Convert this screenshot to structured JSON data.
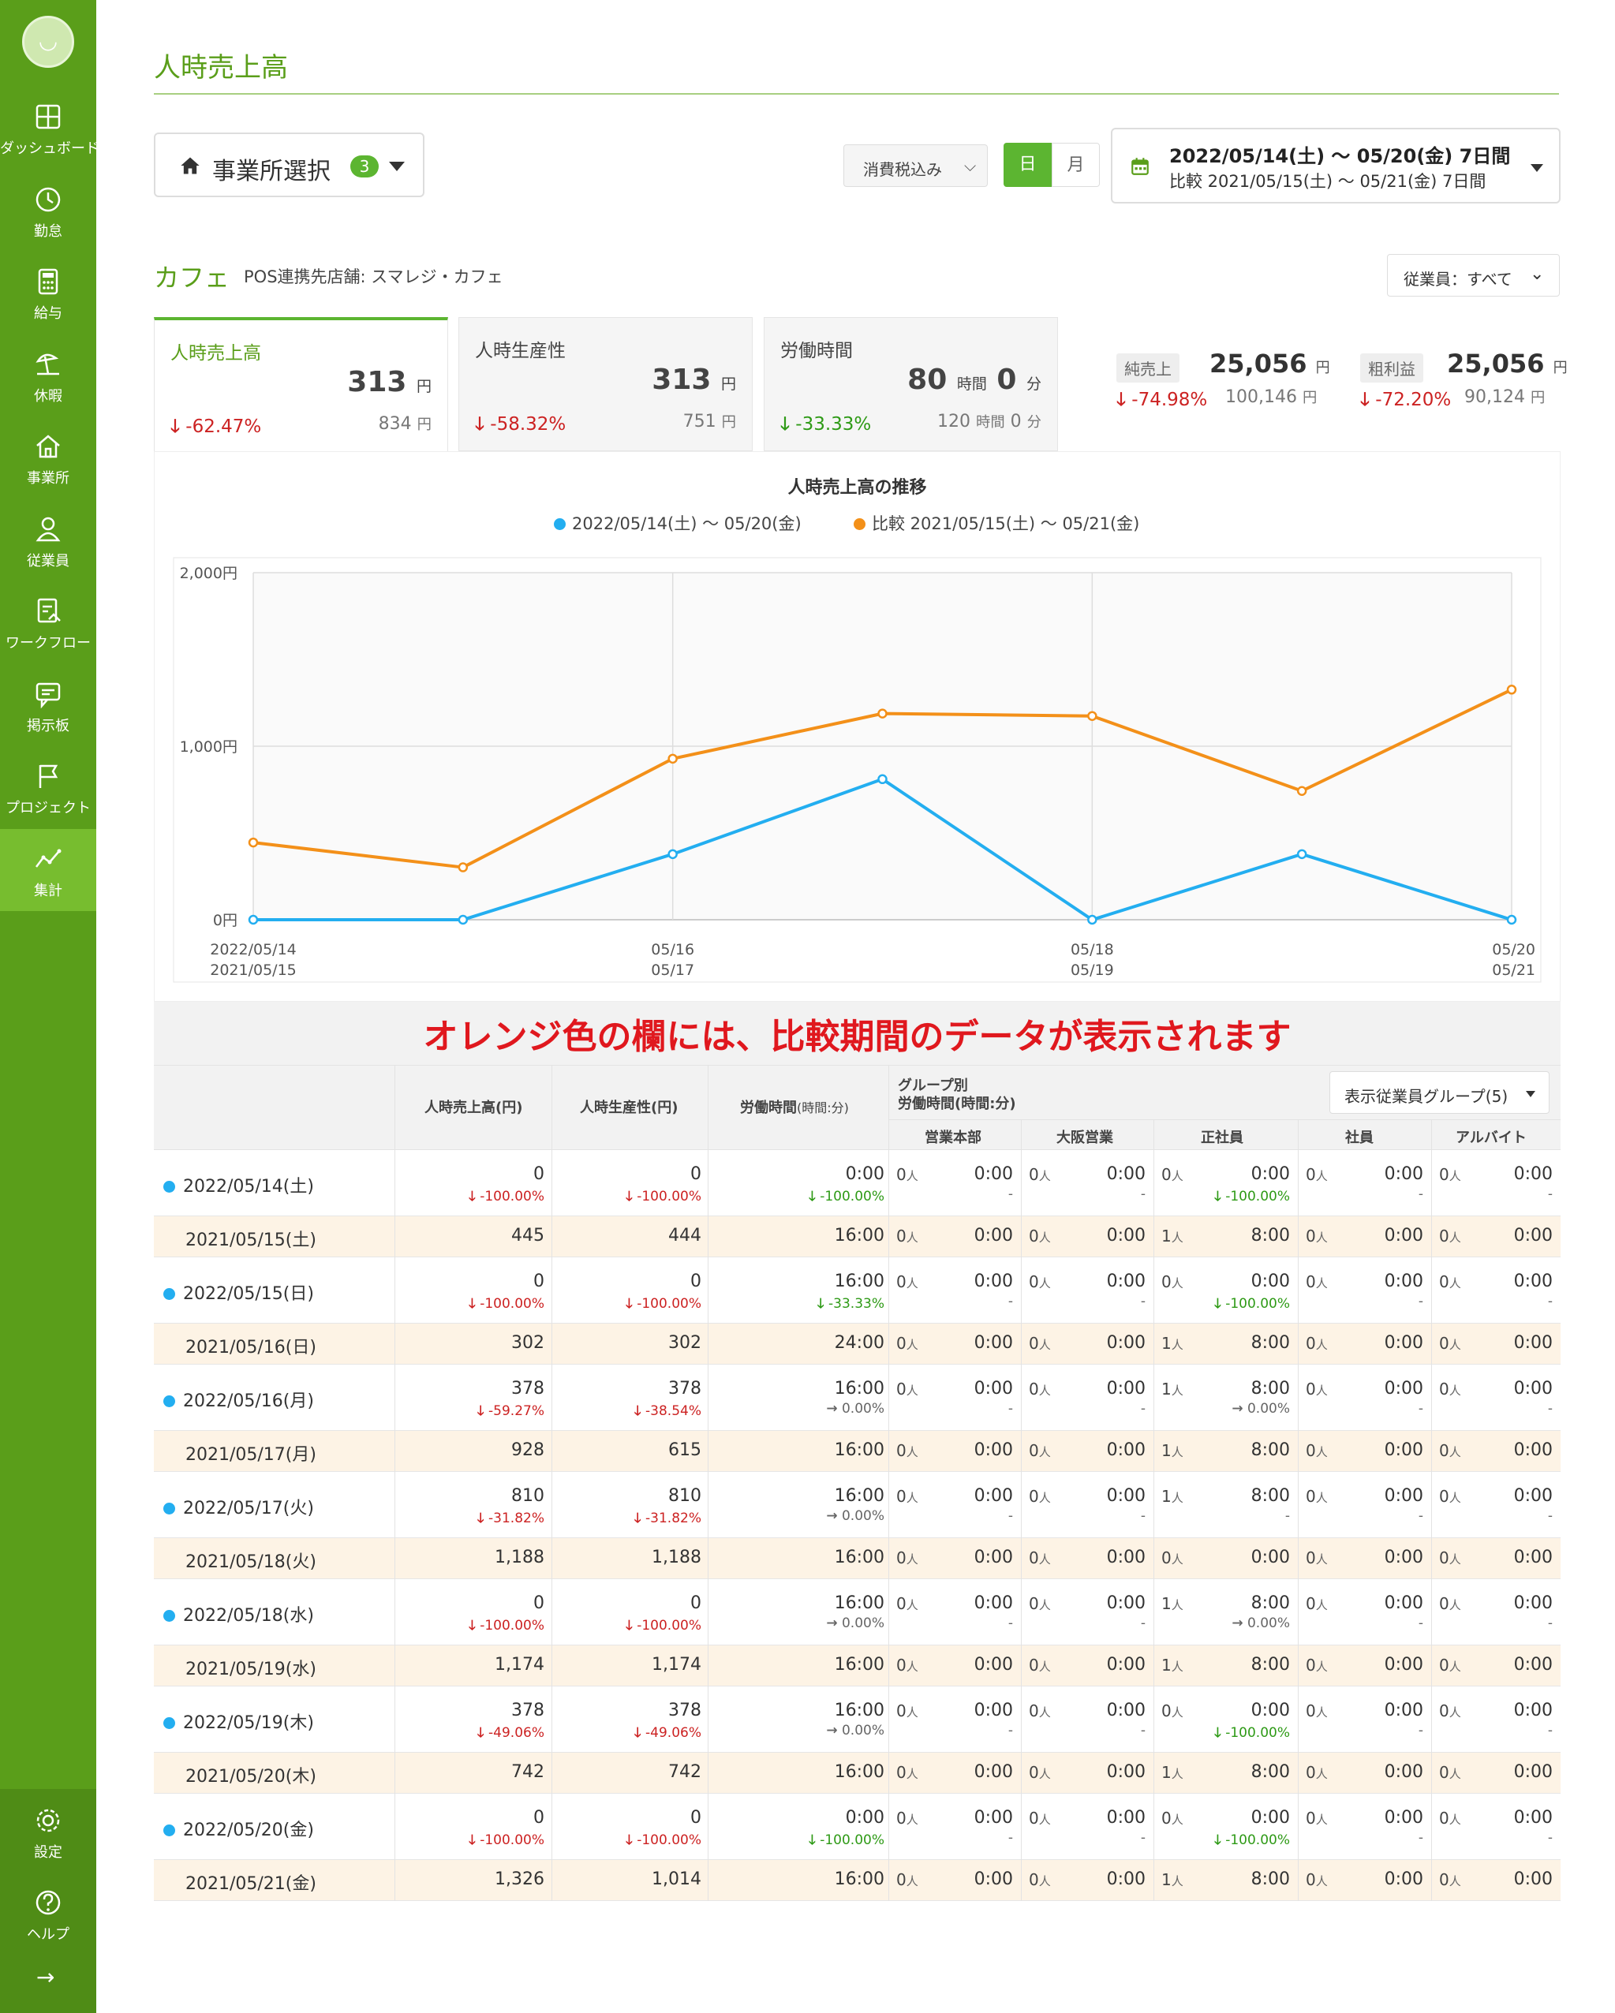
{
  "sidebar": {
    "items": [
      {
        "label": "ダッシュボード",
        "icon": "dashboard-icon"
      },
      {
        "label": "勤怠",
        "icon": "clock-icon"
      },
      {
        "label": "給与",
        "icon": "calculator-icon"
      },
      {
        "label": "休暇",
        "icon": "vacation-icon"
      },
      {
        "label": "事業所",
        "icon": "home-icon"
      },
      {
        "label": "従業員",
        "icon": "person-icon"
      },
      {
        "label": "ワークフロー",
        "icon": "workflow-icon"
      },
      {
        "label": "掲示板",
        "icon": "chat-icon"
      },
      {
        "label": "プロジェクト",
        "icon": "flag-icon"
      },
      {
        "label": "集計",
        "icon": "chart-line-icon"
      }
    ],
    "bottom": [
      {
        "label": "設定",
        "icon": "gear-icon"
      },
      {
        "label": "ヘルプ",
        "icon": "help-icon"
      }
    ],
    "collapse": "→"
  },
  "header": {
    "title": "人時売上高",
    "shop_select_label": "事業所選択",
    "shop_count": "3",
    "tax_select": "消費税込み",
    "seg_day": "日",
    "seg_month": "月",
    "date_range": "2022/05/14(土) 〜 05/20(金) 7日間",
    "compare_range": "比較 2021/05/15(土) 〜 05/21(金) 7日間"
  },
  "store": {
    "name": "カフェ",
    "pos": "POS連携先店舗: スマレジ・カフェ",
    "employee_filter": "従業員：すべて"
  },
  "metrics": [
    {
      "name": "人時売上高",
      "value": "313",
      "unit": "円",
      "pct": "-62.47%",
      "compare": "834",
      "compare_unit": "円"
    },
    {
      "name": "人時生産性",
      "value": "313",
      "unit": "円",
      "pct": "-58.32%",
      "compare": "751",
      "compare_unit": "円"
    },
    {
      "name": "労働時間",
      "value": "80",
      "unit": "時間",
      "value2": "0",
      "unit2": "分",
      "pct": "-33.33%",
      "compare": "120",
      "compare_unit": "時間",
      "compare2": "0",
      "compare_unit2": "分"
    }
  ],
  "kpis": [
    {
      "label": "純売上",
      "value": "25,056",
      "unit": "円",
      "pct": "-74.98%",
      "compare": "100,146",
      "compare_unit": "円"
    },
    {
      "label": "粗利益",
      "value": "25,056",
      "unit": "円",
      "pct": "-72.20%",
      "compare": "90,124",
      "compare_unit": "円"
    }
  ],
  "colors": {
    "brand": "#5a9e1a",
    "current_series": "#23aef0",
    "compare_series": "#f39019",
    "down_red": "#cc2222",
    "down_green": "#2e9a16",
    "notice_red": "#e0181e"
  },
  "chart_data": {
    "type": "line",
    "title": "人時売上高の推移",
    "y_ticks": [
      "0円",
      "1,000円",
      "2,000円"
    ],
    "ylim": [
      0,
      2000
    ],
    "x_labels": [
      {
        "i": 0,
        "top": "2022/05/14",
        "bottom": "2021/05/15"
      },
      {
        "i": 2,
        "top": "05/16",
        "bottom": "05/17"
      },
      {
        "i": 4,
        "top": "05/18",
        "bottom": "05/19"
      },
      {
        "i": 6,
        "top": "05/20",
        "bottom": "05/21"
      }
    ],
    "series": [
      {
        "name": "2022/05/14(土) 〜 05/20(金)",
        "color": "#23aef0",
        "values": [
          0,
          0,
          378,
          810,
          0,
          378,
          0
        ]
      },
      {
        "name": "比較 2021/05/15(土) 〜 05/21(金)",
        "color": "#f39019",
        "values": [
          445,
          302,
          928,
          1188,
          1174,
          742,
          1326
        ]
      }
    ],
    "grid": true,
    "legend": "top-center"
  },
  "notice": "オレンジ色の欄には、比較期間のデータが表示されます",
  "table": {
    "headers": {
      "sales": "人時売上高(円)",
      "productivity": "人時生産性(円)",
      "hours": "労働時間",
      "hours_unit": "(時間:分)",
      "group_title": "グループ別",
      "group_sub": "労働時間(時間:分)",
      "group_button": "表示従業員グループ(5)",
      "groups": [
        "営業本部",
        "大阪営業",
        "正社員",
        "社員",
        "アルバイト"
      ]
    },
    "person_unit": "人",
    "rows": [
      {
        "kind": "cur",
        "date": "2022/05/14(土)",
        "sales": "0",
        "sales_pct": "-100.00%",
        "sales_dir": "down-red",
        "prod": "0",
        "prod_pct": "-100.00%",
        "prod_dir": "down-red",
        "hours": "0:00",
        "hours_pct": "-100.00%",
        "hours_dir": "down-green",
        "groups": [
          {
            "n": "0",
            "t": "0:00",
            "p": "-"
          },
          {
            "n": "0",
            "t": "0:00",
            "p": "-"
          },
          {
            "n": "0",
            "t": "0:00",
            "p": "-100.00%",
            "d": "down-green"
          },
          {
            "n": "0",
            "t": "0:00",
            "p": "-"
          },
          {
            "n": "0",
            "t": "0:00",
            "p": "-"
          }
        ]
      },
      {
        "kind": "cmp",
        "date": "2021/05/15(土)",
        "sales": "445",
        "prod": "444",
        "hours": "16:00",
        "groups": [
          {
            "n": "0",
            "t": "0:00"
          },
          {
            "n": "0",
            "t": "0:00"
          },
          {
            "n": "1",
            "t": "8:00"
          },
          {
            "n": "0",
            "t": "0:00"
          },
          {
            "n": "0",
            "t": "0:00"
          }
        ]
      },
      {
        "kind": "cur",
        "date": "2022/05/15(日)",
        "sales": "0",
        "sales_pct": "-100.00%",
        "sales_dir": "down-red",
        "prod": "0",
        "prod_pct": "-100.00%",
        "prod_dir": "down-red",
        "hours": "16:00",
        "hours_pct": "-33.33%",
        "hours_dir": "down-green",
        "groups": [
          {
            "n": "0",
            "t": "0:00",
            "p": "-"
          },
          {
            "n": "0",
            "t": "0:00",
            "p": "-"
          },
          {
            "n": "0",
            "t": "0:00",
            "p": "-100.00%",
            "d": "down-green"
          },
          {
            "n": "0",
            "t": "0:00",
            "p": "-"
          },
          {
            "n": "0",
            "t": "0:00",
            "p": "-"
          }
        ]
      },
      {
        "kind": "cmp",
        "date": "2021/05/16(日)",
        "sales": "302",
        "prod": "302",
        "hours": "24:00",
        "groups": [
          {
            "n": "0",
            "t": "0:00"
          },
          {
            "n": "0",
            "t": "0:00"
          },
          {
            "n": "1",
            "t": "8:00"
          },
          {
            "n": "0",
            "t": "0:00"
          },
          {
            "n": "0",
            "t": "0:00"
          }
        ]
      },
      {
        "kind": "cur",
        "date": "2022/05/16(月)",
        "sales": "378",
        "sales_pct": "-59.27%",
        "sales_dir": "down-red",
        "prod": "378",
        "prod_pct": "-38.54%",
        "prod_dir": "down-red",
        "hours": "16:00",
        "hours_pct": "0.00%",
        "hours_dir": "flat",
        "groups": [
          {
            "n": "0",
            "t": "0:00",
            "p": "-"
          },
          {
            "n": "0",
            "t": "0:00",
            "p": "-"
          },
          {
            "n": "1",
            "t": "8:00",
            "p": "0.00%",
            "d": "flat"
          },
          {
            "n": "0",
            "t": "0:00",
            "p": "-"
          },
          {
            "n": "0",
            "t": "0:00",
            "p": "-"
          }
        ]
      },
      {
        "kind": "cmp",
        "date": "2021/05/17(月)",
        "sales": "928",
        "prod": "615",
        "hours": "16:00",
        "groups": [
          {
            "n": "0",
            "t": "0:00"
          },
          {
            "n": "0",
            "t": "0:00"
          },
          {
            "n": "1",
            "t": "8:00"
          },
          {
            "n": "0",
            "t": "0:00"
          },
          {
            "n": "0",
            "t": "0:00"
          }
        ]
      },
      {
        "kind": "cur",
        "date": "2022/05/17(火)",
        "sales": "810",
        "sales_pct": "-31.82%",
        "sales_dir": "down-red",
        "prod": "810",
        "prod_pct": "-31.82%",
        "prod_dir": "down-red",
        "hours": "16:00",
        "hours_pct": "0.00%",
        "hours_dir": "flat",
        "groups": [
          {
            "n": "0",
            "t": "0:00",
            "p": "-"
          },
          {
            "n": "0",
            "t": "0:00",
            "p": "-"
          },
          {
            "n": "1",
            "t": "8:00",
            "p": "-"
          },
          {
            "n": "0",
            "t": "0:00",
            "p": "-"
          },
          {
            "n": "0",
            "t": "0:00",
            "p": "-"
          }
        ]
      },
      {
        "kind": "cmp",
        "date": "2021/05/18(火)",
        "sales": "1,188",
        "prod": "1,188",
        "hours": "16:00",
        "groups": [
          {
            "n": "0",
            "t": "0:00"
          },
          {
            "n": "0",
            "t": "0:00"
          },
          {
            "n": "0",
            "t": "0:00"
          },
          {
            "n": "0",
            "t": "0:00"
          },
          {
            "n": "0",
            "t": "0:00"
          }
        ]
      },
      {
        "kind": "cur",
        "date": "2022/05/18(水)",
        "sales": "0",
        "sales_pct": "-100.00%",
        "sales_dir": "down-red",
        "prod": "0",
        "prod_pct": "-100.00%",
        "prod_dir": "down-red",
        "hours": "16:00",
        "hours_pct": "0.00%",
        "hours_dir": "flat",
        "groups": [
          {
            "n": "0",
            "t": "0:00",
            "p": "-"
          },
          {
            "n": "0",
            "t": "0:00",
            "p": "-"
          },
          {
            "n": "1",
            "t": "8:00",
            "p": "0.00%",
            "d": "flat"
          },
          {
            "n": "0",
            "t": "0:00",
            "p": "-"
          },
          {
            "n": "0",
            "t": "0:00",
            "p": "-"
          }
        ]
      },
      {
        "kind": "cmp",
        "date": "2021/05/19(水)",
        "sales": "1,174",
        "prod": "1,174",
        "hours": "16:00",
        "groups": [
          {
            "n": "0",
            "t": "0:00"
          },
          {
            "n": "0",
            "t": "0:00"
          },
          {
            "n": "1",
            "t": "8:00"
          },
          {
            "n": "0",
            "t": "0:00"
          },
          {
            "n": "0",
            "t": "0:00"
          }
        ]
      },
      {
        "kind": "cur",
        "date": "2022/05/19(木)",
        "sales": "378",
        "sales_pct": "-49.06%",
        "sales_dir": "down-red",
        "prod": "378",
        "prod_pct": "-49.06%",
        "prod_dir": "down-red",
        "hours": "16:00",
        "hours_pct": "0.00%",
        "hours_dir": "flat",
        "groups": [
          {
            "n": "0",
            "t": "0:00",
            "p": "-"
          },
          {
            "n": "0",
            "t": "0:00",
            "p": "-"
          },
          {
            "n": "0",
            "t": "0:00",
            "p": "-100.00%",
            "d": "down-green"
          },
          {
            "n": "0",
            "t": "0:00",
            "p": "-"
          },
          {
            "n": "0",
            "t": "0:00",
            "p": "-"
          }
        ]
      },
      {
        "kind": "cmp",
        "date": "2021/05/20(木)",
        "sales": "742",
        "prod": "742",
        "hours": "16:00",
        "groups": [
          {
            "n": "0",
            "t": "0:00"
          },
          {
            "n": "0",
            "t": "0:00"
          },
          {
            "n": "1",
            "t": "8:00"
          },
          {
            "n": "0",
            "t": "0:00"
          },
          {
            "n": "0",
            "t": "0:00"
          }
        ]
      },
      {
        "kind": "cur",
        "date": "2022/05/20(金)",
        "sales": "0",
        "sales_pct": "-100.00%",
        "sales_dir": "down-red",
        "prod": "0",
        "prod_pct": "-100.00%",
        "prod_dir": "down-red",
        "hours": "0:00",
        "hours_pct": "-100.00%",
        "hours_dir": "down-green",
        "groups": [
          {
            "n": "0",
            "t": "0:00",
            "p": "-"
          },
          {
            "n": "0",
            "t": "0:00",
            "p": "-"
          },
          {
            "n": "0",
            "t": "0:00",
            "p": "-100.00%",
            "d": "down-green"
          },
          {
            "n": "0",
            "t": "0:00",
            "p": "-"
          },
          {
            "n": "0",
            "t": "0:00",
            "p": "-"
          }
        ]
      },
      {
        "kind": "cmp",
        "date": "2021/05/21(金)",
        "sales": "1,326",
        "prod": "1,014",
        "hours": "16:00",
        "groups": [
          {
            "n": "0",
            "t": "0:00"
          },
          {
            "n": "0",
            "t": "0:00"
          },
          {
            "n": "1",
            "t": "8:00"
          },
          {
            "n": "0",
            "t": "0:00"
          },
          {
            "n": "0",
            "t": "0:00"
          }
        ]
      }
    ]
  }
}
